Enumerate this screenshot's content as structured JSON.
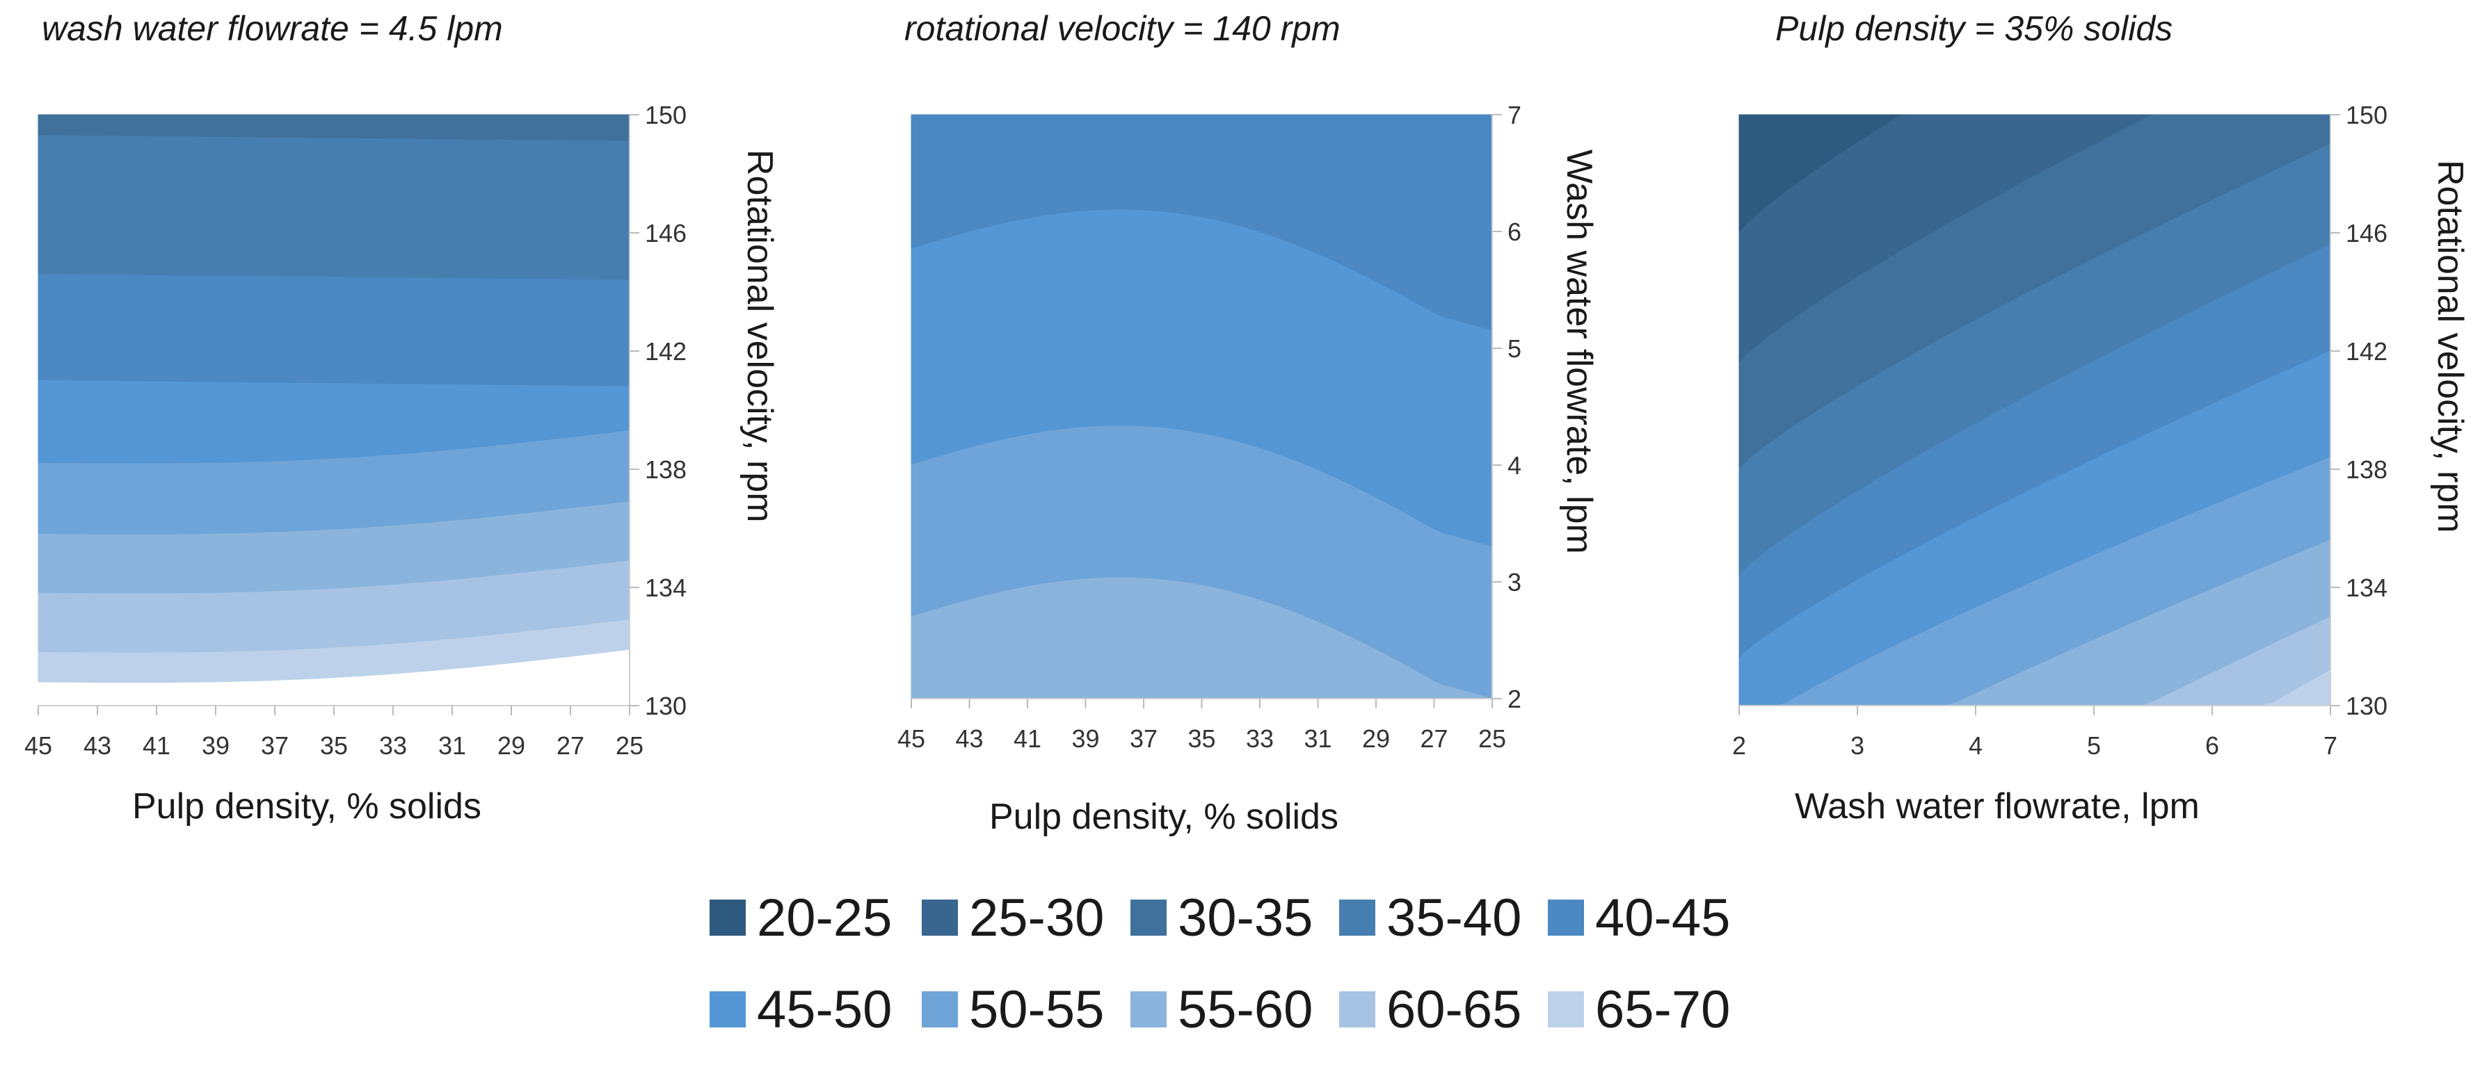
{
  "chart_data": [
    {
      "type": "contour",
      "title": "wash water flowrate = 4.5 lpm",
      "xlabel": "Pulp density, % solids",
      "ylabel": "Rotational velocity, rpm",
      "x_ticks": [
        "45",
        "43",
        "41",
        "39",
        "37",
        "35",
        "33",
        "31",
        "29",
        "27",
        "25"
      ],
      "y_ticks": [
        "150",
        "146",
        "142",
        "138",
        "134",
        "130"
      ],
      "xlim": [
        45,
        25
      ],
      "ylim": [
        130,
        150
      ],
      "y_axis_side": "right",
      "z_levels": [
        "30-35",
        "35-40",
        "40-45",
        "45-50",
        "50-55",
        "55-60",
        "60-65",
        "65-70"
      ]
    },
    {
      "type": "contour",
      "title": "rotational velocity = 140 rpm",
      "xlabel": "Pulp density, % solids",
      "ylabel": "Wash water flowrate, lpm",
      "x_ticks": [
        "45",
        "43",
        "41",
        "39",
        "37",
        "35",
        "33",
        "31",
        "29",
        "27",
        "25"
      ],
      "y_ticks": [
        "7",
        "6",
        "5",
        "4",
        "3",
        "2"
      ],
      "xlim": [
        45,
        25
      ],
      "ylim": [
        2,
        7
      ],
      "y_axis_side": "right",
      "z_levels": [
        "40-45",
        "45-50",
        "50-55",
        "55-60"
      ]
    },
    {
      "type": "contour",
      "title": "Pulp density = 35% solids",
      "xlabel": "Wash water flowrate, lpm",
      "ylabel": "Rotational velocity, rpm",
      "x_ticks": [
        "2",
        "3",
        "4",
        "5",
        "6",
        "7"
      ],
      "y_ticks": [
        "150",
        "146",
        "142",
        "138",
        "134",
        "130"
      ],
      "xlim": [
        2,
        7
      ],
      "ylim": [
        130,
        150
      ],
      "y_axis_side": "right",
      "z_levels": [
        "20-25",
        "25-30",
        "30-35",
        "35-40",
        "40-45",
        "45-50",
        "50-55",
        "55-60",
        "60-65",
        "65-70"
      ]
    }
  ],
  "legend": {
    "items": [
      {
        "label": "20-25",
        "color": "#2f5a80"
      },
      {
        "label": "25-30",
        "color": "#38668f"
      },
      {
        "label": "30-35",
        "color": "#3f719c"
      },
      {
        "label": "35-40",
        "color": "#467eb0"
      },
      {
        "label": "40-45",
        "color": "#4c88c2"
      },
      {
        "label": "45-50",
        "color": "#5596d4"
      },
      {
        "label": "50-55",
        "color": "#6fa4d8"
      },
      {
        "label": "55-60",
        "color": "#8bb4dc"
      },
      {
        "label": "60-65",
        "color": "#a6c3e3"
      },
      {
        "label": "65-70",
        "color": "#bdd2ea"
      }
    ]
  }
}
